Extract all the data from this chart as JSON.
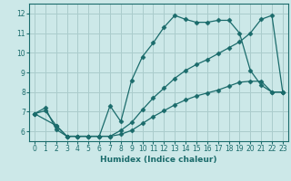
{
  "xlabel": "Humidex (Indice chaleur)",
  "bg_color": "#cce8e8",
  "grid_color": "#aacccc",
  "line_color": "#1a6b6b",
  "xlim": [
    -0.5,
    23.5
  ],
  "ylim": [
    5.5,
    12.5
  ],
  "xticks": [
    0,
    1,
    2,
    3,
    4,
    5,
    6,
    7,
    8,
    9,
    10,
    11,
    12,
    13,
    14,
    15,
    16,
    17,
    18,
    19,
    20,
    21,
    22,
    23
  ],
  "yticks": [
    6,
    7,
    8,
    9,
    10,
    11,
    12
  ],
  "line1_x": [
    0,
    1,
    2,
    3,
    4,
    5,
    6,
    7,
    8,
    9,
    10,
    11,
    12,
    13,
    14,
    15,
    16,
    17,
    18,
    19,
    20,
    21,
    22,
    23
  ],
  "line1_y": [
    6.9,
    7.2,
    6.1,
    5.75,
    5.75,
    5.75,
    5.75,
    7.3,
    6.5,
    8.6,
    9.8,
    10.5,
    11.3,
    11.9,
    11.7,
    11.55,
    11.55,
    11.65,
    11.65,
    11.0,
    9.1,
    8.35,
    8.0,
    8.0
  ],
  "line2_x": [
    0,
    1,
    2,
    3,
    4,
    5,
    6,
    7,
    8,
    9,
    10,
    11,
    12,
    13,
    14,
    15,
    16,
    17,
    18,
    19,
    20,
    21,
    22,
    23
  ],
  "line2_y": [
    6.9,
    7.05,
    6.3,
    5.75,
    5.75,
    5.75,
    5.75,
    5.75,
    5.85,
    6.05,
    6.4,
    6.75,
    7.05,
    7.35,
    7.6,
    7.8,
    7.95,
    8.1,
    8.3,
    8.5,
    8.55,
    8.55,
    8.0,
    8.0
  ],
  "line3_x": [
    0,
    2,
    3,
    4,
    5,
    6,
    7,
    8,
    9,
    10,
    11,
    12,
    13,
    14,
    15,
    16,
    17,
    18,
    19,
    20,
    21,
    22,
    23
  ],
  "line3_y": [
    6.9,
    6.3,
    5.75,
    5.75,
    5.75,
    5.75,
    5.75,
    6.05,
    6.45,
    7.1,
    7.7,
    8.2,
    8.7,
    9.1,
    9.4,
    9.65,
    9.95,
    10.25,
    10.55,
    11.0,
    11.7,
    11.9,
    8.0
  ]
}
